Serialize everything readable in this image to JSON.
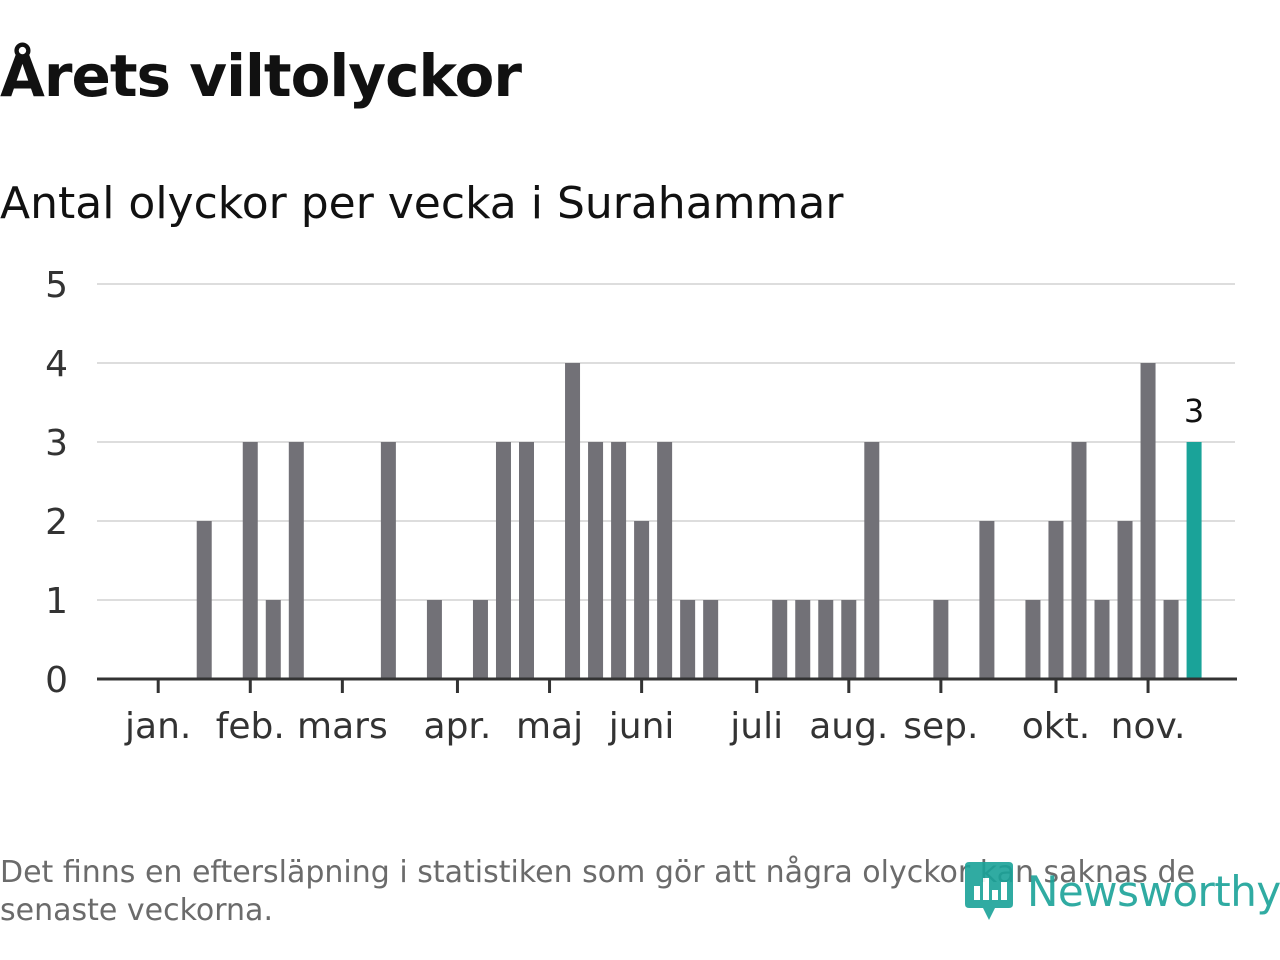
{
  "title": "Årets viltolyckor",
  "subtitle": "Antal olyckor per vecka i Surahammar",
  "footnote": "Det finns en eftersläpning i statistiken som gör att några olyckor kan saknas de senaste veckorna.",
  "brand": {
    "name": "Newsworthy",
    "color": "#1aa399",
    "icon": "newsworthy-logo-icon"
  },
  "chart_data": {
    "type": "bar",
    "xlabel": "",
    "ylabel": "",
    "ylim": [
      0,
      5
    ],
    "yticks": [
      0,
      1,
      2,
      3,
      4,
      5
    ],
    "grid": true,
    "month_labels": [
      "jan.",
      "feb.",
      "mars",
      "apr.",
      "maj",
      "juni",
      "juli",
      "aug.",
      "sep.",
      "okt.",
      "nov."
    ],
    "month_tick_weeks": [
      1,
      5,
      9,
      14,
      18,
      22,
      27,
      31,
      35,
      40,
      44
    ],
    "weeks": [
      1,
      2,
      3,
      4,
      5,
      6,
      7,
      8,
      9,
      10,
      11,
      12,
      13,
      14,
      15,
      16,
      17,
      18,
      19,
      20,
      21,
      22,
      23,
      24,
      25,
      26,
      27,
      28,
      29,
      30,
      31,
      32,
      33,
      34,
      35,
      36,
      37,
      38,
      39,
      40,
      41,
      42,
      43,
      44,
      45
    ],
    "values": [
      0,
      2,
      0,
      3,
      1,
      3,
      0,
      0,
      0,
      3,
      0,
      1,
      0,
      1,
      3,
      3,
      0,
      4,
      3,
      3,
      2,
      3,
      1,
      1,
      0,
      0,
      1,
      1,
      1,
      1,
      3,
      0,
      0,
      1,
      0,
      2,
      0,
      1,
      2,
      3,
      1,
      2,
      4,
      1,
      3
    ],
    "highlight_week": 45,
    "highlight_label": "3",
    "colors": {
      "bar": "#727177",
      "highlight": "#1aa399",
      "grid": "#dddddd",
      "axis": "#333333"
    }
  }
}
